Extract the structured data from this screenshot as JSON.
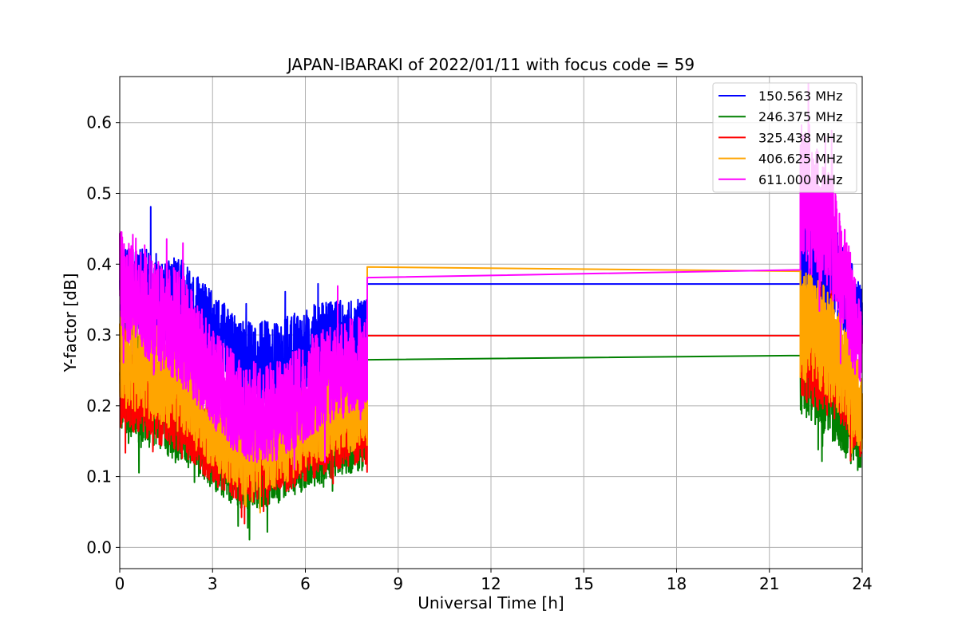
{
  "chart_data": {
    "type": "line",
    "title": "JAPAN-IBARAKI of 2022/01/11 with focus code = 59",
    "xlabel": "Universal Time [h]",
    "ylabel": "Y-factor [dB]",
    "xlim": [
      0,
      24
    ],
    "ylim": [
      -0.03,
      0.665
    ],
    "xticks": [
      0,
      3,
      6,
      9,
      12,
      15,
      18,
      21,
      24
    ],
    "yticks": [
      0.0,
      0.1,
      0.2,
      0.3,
      0.4,
      0.5,
      0.6
    ],
    "grid": true,
    "legend_position": "upper right",
    "note_on_values": "Values are approximate envelopes; dense noisy signal with gap between ~8 h and ~22 h bridged by straight lines.",
    "series": [
      {
        "name": "150.563 MHz",
        "color": "#0000ff",
        "x": [
          0.0,
          1.0,
          2.0,
          3.0,
          4.0,
          5.0,
          6.0,
          7.0,
          8.0,
          22.0,
          23.0,
          24.0
        ],
        "mean": [
          0.36,
          0.35,
          0.34,
          0.3,
          0.26,
          0.26,
          0.28,
          0.29,
          0.29,
          0.39,
          0.4,
          0.32
        ],
        "amp": [
          0.07,
          0.07,
          0.07,
          0.06,
          0.06,
          0.06,
          0.06,
          0.06,
          0.06,
          0.07,
          0.07,
          0.05
        ],
        "bridge": [
          [
            8.0,
            0.372
          ],
          [
            22.0,
            0.372
          ]
        ]
      },
      {
        "name": "246.375 MHz",
        "color": "#008000",
        "x": [
          0.0,
          1.0,
          2.0,
          3.0,
          4.0,
          5.0,
          6.0,
          7.0,
          8.0,
          22.0,
          23.0,
          24.0
        ],
        "mean": [
          0.22,
          0.2,
          0.18,
          0.13,
          0.1,
          0.11,
          0.13,
          0.15,
          0.16,
          0.26,
          0.22,
          0.15
        ],
        "amp": [
          0.06,
          0.06,
          0.06,
          0.05,
          0.05,
          0.05,
          0.05,
          0.05,
          0.05,
          0.07,
          0.07,
          0.05
        ],
        "bridge": [
          [
            8.0,
            0.265
          ],
          [
            22.0,
            0.271
          ]
        ]
      },
      {
        "name": "325.438 MHz",
        "color": "#ff0000",
        "x": [
          0.0,
          1.0,
          2.0,
          3.0,
          4.0,
          5.0,
          6.0,
          7.0,
          8.0,
          22.0,
          23.0,
          24.0
        ],
        "mean": [
          0.23,
          0.21,
          0.19,
          0.14,
          0.11,
          0.12,
          0.14,
          0.16,
          0.17,
          0.28,
          0.25,
          0.17
        ],
        "amp": [
          0.06,
          0.06,
          0.06,
          0.05,
          0.05,
          0.05,
          0.05,
          0.05,
          0.05,
          0.07,
          0.07,
          0.05
        ],
        "bridge": [
          [
            8.0,
            0.299
          ],
          [
            22.0,
            0.299
          ]
        ]
      },
      {
        "name": "406.625 MHz",
        "color": "#ffa500",
        "x": [
          0.0,
          1.0,
          2.0,
          3.0,
          4.0,
          5.0,
          6.0,
          7.0,
          8.0,
          22.0,
          23.0,
          24.0
        ],
        "mean": [
          0.27,
          0.25,
          0.23,
          0.17,
          0.13,
          0.14,
          0.17,
          0.19,
          0.2,
          0.32,
          0.28,
          0.19
        ],
        "amp": [
          0.07,
          0.07,
          0.07,
          0.06,
          0.06,
          0.06,
          0.06,
          0.06,
          0.06,
          0.08,
          0.08,
          0.06
        ],
        "bridge": [
          [
            8.0,
            0.396
          ],
          [
            22.0,
            0.39
          ]
        ]
      },
      {
        "name": "611.000 MHz",
        "color": "#ff00ff",
        "x": [
          0.0,
          1.0,
          2.0,
          3.0,
          4.0,
          5.0,
          6.0,
          7.0,
          8.0,
          22.0,
          23.0,
          24.0
        ],
        "mean": [
          0.38,
          0.34,
          0.31,
          0.24,
          0.19,
          0.19,
          0.22,
          0.25,
          0.26,
          0.5,
          0.44,
          0.28
        ],
        "amp": [
          0.08,
          0.08,
          0.08,
          0.07,
          0.07,
          0.07,
          0.07,
          0.07,
          0.07,
          0.1,
          0.09,
          0.07
        ],
        "bridge": [
          [
            8.0,
            0.381
          ],
          [
            22.0,
            0.392
          ]
        ]
      }
    ]
  }
}
